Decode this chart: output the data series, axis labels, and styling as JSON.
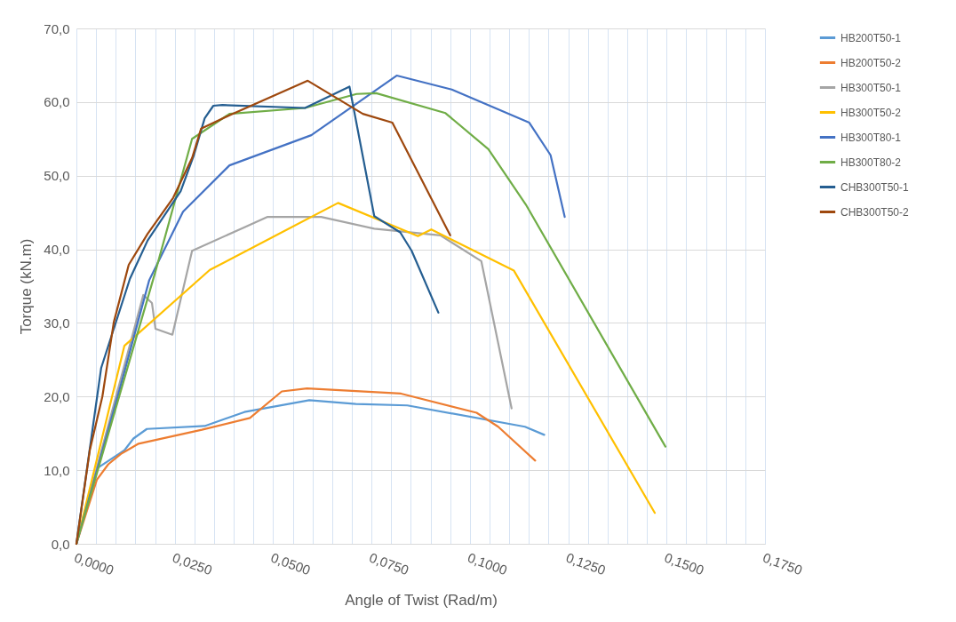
{
  "chart_data": {
    "type": "line",
    "xlabel": "Angle of Twist (Rad/m)",
    "ylabel": "Torque (kN.m)",
    "grid": true,
    "legend": "right",
    "line_style": "solid",
    "marker": "none",
    "xlim": [
      0,
      0.175
    ],
    "ylim": [
      0,
      70
    ],
    "xticks": [
      {
        "value": 0,
        "label": "0,0000"
      },
      {
        "value": 0.005,
        "label": null
      },
      {
        "value": 0.01,
        "label": null
      },
      {
        "value": 0.015,
        "label": null
      },
      {
        "value": 0.02,
        "label": null
      },
      {
        "value": 0.025,
        "label": "0,0250"
      },
      {
        "value": 0.03,
        "label": null
      },
      {
        "value": 0.035,
        "label": null
      },
      {
        "value": 0.04,
        "label": null
      },
      {
        "value": 0.045,
        "label": null
      },
      {
        "value": 0.05,
        "label": "0,0500"
      },
      {
        "value": 0.055,
        "label": null
      },
      {
        "value": 0.06,
        "label": null
      },
      {
        "value": 0.065,
        "label": null
      },
      {
        "value": 0.07,
        "label": null
      },
      {
        "value": 0.075,
        "label": "0,0750"
      },
      {
        "value": 0.08,
        "label": null
      },
      {
        "value": 0.085,
        "label": null
      },
      {
        "value": 0.09,
        "label": null
      },
      {
        "value": 0.095,
        "label": null
      },
      {
        "value": 0.1,
        "label": "0,1000"
      },
      {
        "value": 0.105,
        "label": null
      },
      {
        "value": 0.11,
        "label": null
      },
      {
        "value": 0.115,
        "label": null
      },
      {
        "value": 0.12,
        "label": null
      },
      {
        "value": 0.125,
        "label": "0,1250"
      },
      {
        "value": 0.13,
        "label": null
      },
      {
        "value": 0.135,
        "label": null
      },
      {
        "value": 0.14,
        "label": null
      },
      {
        "value": 0.145,
        "label": null
      },
      {
        "value": 0.15,
        "label": "0,1500"
      },
      {
        "value": 0.155,
        "label": null
      },
      {
        "value": 0.16,
        "label": null
      },
      {
        "value": 0.165,
        "label": null
      },
      {
        "value": 0.17,
        "label": null
      },
      {
        "value": 0.175,
        "label": "0,1750"
      }
    ],
    "yticks": [
      {
        "value": 0,
        "label": "0,0"
      },
      {
        "value": 10,
        "label": "10,0"
      },
      {
        "value": 20,
        "label": "20,0"
      },
      {
        "value": 30,
        "label": "30,0"
      },
      {
        "value": 40,
        "label": "40,0"
      },
      {
        "value": 50,
        "label": "50,0"
      },
      {
        "value": 60,
        "label": "60,0"
      },
      {
        "value": 70,
        "label": "70,0"
      }
    ],
    "series": [
      {
        "name": "HB200T50-1",
        "color": "#5b9bd5",
        "x": [
          0,
          0.0054,
          0.0122,
          0.0145,
          0.0179,
          0.0326,
          0.0427,
          0.0592,
          0.071,
          0.0841,
          0.114,
          0.1189
        ],
        "values": [
          0,
          10.3,
          12.7,
          14.3,
          15.6,
          16.0,
          17.9,
          19.5,
          19.0,
          18.8,
          15.9,
          14.8
        ]
      },
      {
        "name": "HB200T50-2",
        "color": "#ed7d31",
        "x": [
          0,
          0.0052,
          0.0081,
          0.0113,
          0.0158,
          0.0319,
          0.0441,
          0.0522,
          0.0586,
          0.0825,
          0.1017,
          0.1072,
          0.1166
        ],
        "values": [
          0,
          8.7,
          10.8,
          12.2,
          13.6,
          15.5,
          17.1,
          20.7,
          21.1,
          20.4,
          17.8,
          15.9,
          11.3
        ]
      },
      {
        "name": "HB300T50-1",
        "color": "#a5a5a5",
        "x": [
          0,
          0.017,
          0.0192,
          0.0201,
          0.0244,
          0.0294,
          0.0486,
          0.0622,
          0.0757,
          0.0925,
          0.1029,
          0.1106
        ],
        "values": [
          0,
          33.8,
          32.7,
          29.2,
          28.4,
          39.8,
          44.4,
          44.4,
          42.8,
          41.9,
          38.4,
          18.4
        ]
      },
      {
        "name": "HB300T50-2",
        "color": "#ffc000",
        "x": [
          0,
          0.0122,
          0.0339,
          0.0665,
          0.0868,
          0.0902,
          0.1112,
          0.147
        ],
        "values": [
          0,
          26.9,
          37.2,
          46.3,
          41.8,
          42.7,
          37.1,
          4.2
        ]
      },
      {
        "name": "HB300T80-1",
        "color": "#4472c4",
        "x": [
          0,
          0.0111,
          0.0185,
          0.0271,
          0.0389,
          0.0597,
          0.0814,
          0.0954,
          0.1151,
          0.1205,
          0.1241
        ],
        "values": [
          0,
          21.2,
          35.8,
          45.1,
          51.4,
          55.5,
          63.6,
          61.7,
          57.2,
          52.8,
          44.4
        ]
      },
      {
        "name": "HB300T80-2",
        "color": "#70ad47",
        "x": [
          0,
          0.0201,
          0.0294,
          0.0389,
          0.0581,
          0.0712,
          0.0762,
          0.0938,
          0.1047,
          0.1142,
          0.1497
        ],
        "values": [
          0,
          37.0,
          55.0,
          58.4,
          59.2,
          61.1,
          61.2,
          58.5,
          53.6,
          46.1,
          13.2
        ]
      },
      {
        "name": "CHB300T50-1",
        "color": "#255e91",
        "x": [
          0,
          0.0063,
          0.0136,
          0.0181,
          0.0265,
          0.0298,
          0.0326,
          0.0348,
          0.0371,
          0.0581,
          0.0694,
          0.0757,
          0.0823,
          0.0852,
          0.092
        ],
        "values": [
          0,
          23.9,
          36.0,
          41.2,
          47.9,
          52.7,
          57.8,
          59.5,
          59.6,
          59.2,
          62.1,
          44.5,
          42.3,
          39.8,
          31.4
        ]
      },
      {
        "name": "CHB300T50-2",
        "color": "#9e480e",
        "x": [
          0,
          0.0034,
          0.0066,
          0.0095,
          0.0133,
          0.0181,
          0.0246,
          0.0294,
          0.0317,
          0.0389,
          0.0588,
          0.0728,
          0.0803,
          0.095
        ],
        "values": [
          0,
          12.7,
          20.0,
          30.1,
          37.9,
          42.1,
          47.0,
          52.4,
          56.4,
          58.2,
          62.9,
          58.4,
          57.2,
          41.9
        ]
      }
    ]
  }
}
